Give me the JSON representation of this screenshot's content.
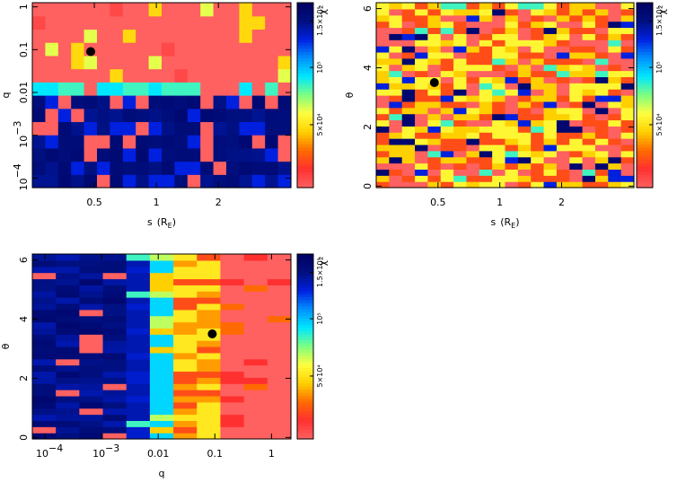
{
  "chart_data": [
    {
      "type": "heatmap",
      "id": "p1",
      "xlabel": "s (R_E)",
      "xlabel_main": "s",
      "xlabel_unit": "(R",
      "xlabel_sub": "E",
      "xlabel_close": ")",
      "ylabel": "q",
      "x_scale": "log",
      "y_scale": "log",
      "xlim": [
        0.25,
        4.5
      ],
      "ylim": [
        6e-05,
        1.25
      ],
      "x_ticks": [
        {
          "value": 0.5,
          "label": "0.5"
        },
        {
          "value": 1,
          "label": "1"
        },
        {
          "value": 2,
          "label": "2"
        }
      ],
      "y_ticks": [
        {
          "value": 0.0001,
          "label": "10",
          "sup": "−4"
        },
        {
          "value": 0.001,
          "label": "10",
          "sup": "−3"
        },
        {
          "value": 0.01,
          "label": "0.01",
          "sup": ""
        },
        {
          "value": 0.1,
          "label": "0.1",
          "sup": ""
        },
        {
          "value": 1,
          "label": "1",
          "sup": ""
        }
      ],
      "grid_cols": 20,
      "grid_rows": 14,
      "best_fit": {
        "x": 0.48,
        "y": 0.09
      },
      "colorbar_label": "χ²",
      "colorbar_ticks": [
        "5×10⁴",
        "10⁵",
        "1.5×10⁵"
      ]
    },
    {
      "type": "heatmap",
      "id": "p2",
      "xlabel": "s (R_E)",
      "xlabel_main": "s",
      "xlabel_unit": "(R",
      "xlabel_sub": "E",
      "xlabel_close": ")",
      "ylabel": "θ",
      "x_scale": "log",
      "y_scale": "linear",
      "xlim": [
        0.25,
        4.5
      ],
      "ylim": [
        -0.05,
        6.2
      ],
      "x_ticks": [
        {
          "value": 0.5,
          "label": "0.5"
        },
        {
          "value": 1,
          "label": "1"
        },
        {
          "value": 2,
          "label": "2"
        }
      ],
      "y_ticks": [
        {
          "value": 0,
          "label": "0"
        },
        {
          "value": 2,
          "label": "2"
        },
        {
          "value": 4,
          "label": "4"
        },
        {
          "value": 6,
          "label": "6"
        }
      ],
      "grid_cols": 20,
      "grid_rows": 30,
      "best_fit": {
        "x": 0.48,
        "y": 3.5
      },
      "colorbar_label": "χ²",
      "colorbar_ticks": [
        "5×10⁴",
        "10⁵",
        "1.5×10⁵"
      ]
    },
    {
      "type": "heatmap",
      "id": "p3",
      "xlabel": "q",
      "ylabel": "θ",
      "x_scale": "log",
      "y_scale": "linear",
      "xlim": [
        6e-05,
        2.2
      ],
      "ylim": [
        -0.05,
        6.2
      ],
      "x_ticks": [
        {
          "value": 0.0001,
          "label": "10",
          "sup": "−4"
        },
        {
          "value": 0.001,
          "label": "10",
          "sup": "−3"
        },
        {
          "value": 0.01,
          "label": "0.01",
          "sup": ""
        },
        {
          "value": 0.1,
          "label": "0.1",
          "sup": ""
        },
        {
          "value": 1,
          "label": "1",
          "sup": ""
        }
      ],
      "y_ticks": [
        {
          "value": 0,
          "label": "0"
        },
        {
          "value": 2,
          "label": "2"
        },
        {
          "value": 4,
          "label": "4"
        },
        {
          "value": 6,
          "label": "6"
        }
      ],
      "grid_cols": 11,
      "grid_rows": 30,
      "best_fit": {
        "x": 0.09,
        "y": 3.5
      },
      "colorbar_label": "χ²",
      "colorbar_ticks": [
        "5×10⁴",
        "10⁵",
        "1.5×10⁵"
      ]
    }
  ],
  "palette": {
    "colorbar_stops": [
      "#ff6060",
      "#ff3030",
      "#ff6a00",
      "#ffd000",
      "#ffff40",
      "#7dff80",
      "#00e8ff",
      "#0090ff",
      "#0020e0",
      "#001080",
      "#000060"
    ],
    "best_fit_marker": "#000000"
  }
}
